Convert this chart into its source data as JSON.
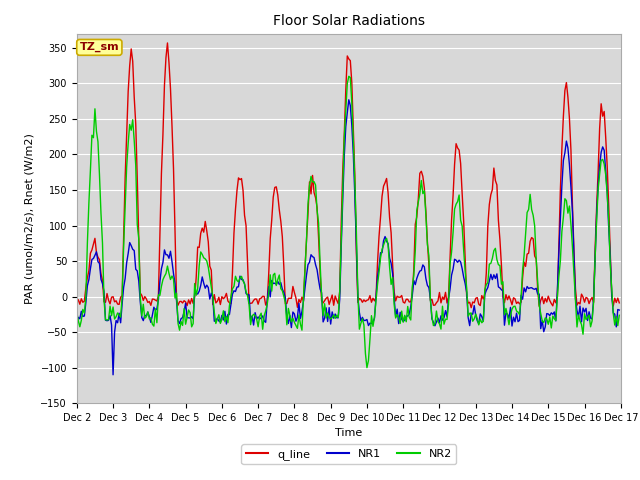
{
  "title": "Floor Solar Radiations",
  "xlabel": "Time",
  "ylabel": "PAR (umol/m2/s), Rnet (W/m2)",
  "ylim": [
    -150,
    370
  ],
  "xlim": [
    0,
    360
  ],
  "yticks": [
    -150,
    -100,
    -50,
    0,
    50,
    100,
    150,
    200,
    250,
    300,
    350
  ],
  "xtick_labels": [
    "Dec 2",
    "Dec 3",
    "Dec 4",
    "Dec 5",
    "Dec 6",
    "Dec 7",
    "Dec 8",
    "Dec 9",
    "Dec 10",
    "Dec 11",
    "Dec 12",
    "Dec 13",
    "Dec 14",
    "Dec 15",
    "Dec 16",
    "Dec 17"
  ],
  "xtick_positions": [
    0,
    24,
    48,
    72,
    96,
    120,
    144,
    168,
    192,
    216,
    240,
    264,
    288,
    312,
    336,
    360
  ],
  "annotation_text": "TZ_sm",
  "annotation_color": "#ffff99",
  "annotation_border": "#ccaa00",
  "colors": {
    "q_line": "#dd0000",
    "NR1": "#0000cc",
    "NR2": "#00cc00"
  },
  "legend_labels": [
    "q_line",
    "NR1",
    "NR2"
  ],
  "fig_bg_color": "#ffffff",
  "plot_bg_color": "#d8d8d8",
  "linewidth": 1.0,
  "title_fontsize": 10,
  "label_fontsize": 8,
  "tick_fontsize": 7,
  "legend_fontsize": 8
}
